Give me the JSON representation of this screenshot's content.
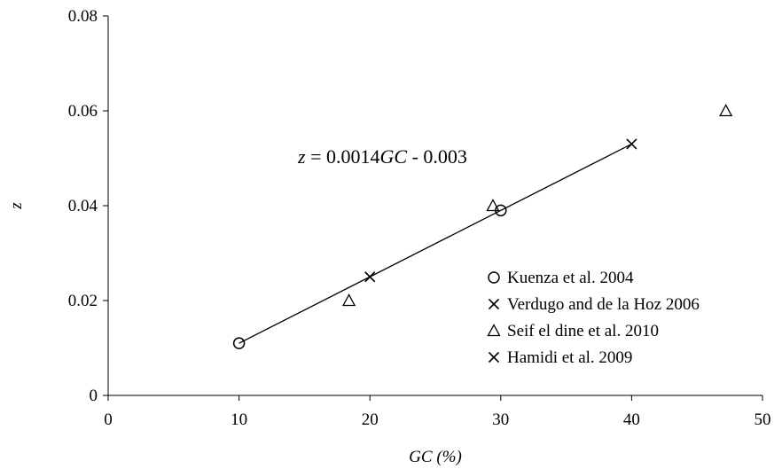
{
  "chart_data": {
    "type": "scatter",
    "title": "",
    "xlabel": "GC (%)",
    "ylabel": "z",
    "xlim": [
      0,
      50
    ],
    "ylim": [
      0,
      0.08
    ],
    "xticks": [
      0,
      10,
      20,
      30,
      40,
      50
    ],
    "yticks": [
      0,
      0.02,
      0.04,
      0.06,
      0.08
    ],
    "ytick_labels": [
      "0",
      "0.02",
      "0.04",
      "0.06",
      "0.08"
    ],
    "grid": false,
    "legend_position": "bottom-right",
    "series": [
      {
        "name": "Kuenza et al. 2004",
        "marker": "circle",
        "points": [
          [
            10,
            0.011
          ],
          [
            30,
            0.039
          ]
        ]
      },
      {
        "name": "Verdugo and de la Hoz 2006",
        "marker": "x",
        "points": [
          [
            20,
            0.025
          ]
        ]
      },
      {
        "name": "Seif el dine et al. 2010",
        "marker": "triangle",
        "points": [
          [
            18.4,
            0.02
          ],
          [
            29.4,
            0.04
          ],
          [
            47.2,
            0.06
          ]
        ]
      },
      {
        "name": "Hamidi et al. 2009",
        "marker": "x",
        "points": [
          [
            40,
            0.053
          ]
        ]
      }
    ],
    "fit_line": {
      "x": [
        10,
        40
      ],
      "y": [
        0.011,
        0.053
      ]
    },
    "annotation": {
      "parts": [
        "z",
        " = 0.0014",
        "GC",
        " - 0.003"
      ],
      "x": 14.5,
      "y": 0.049
    }
  }
}
